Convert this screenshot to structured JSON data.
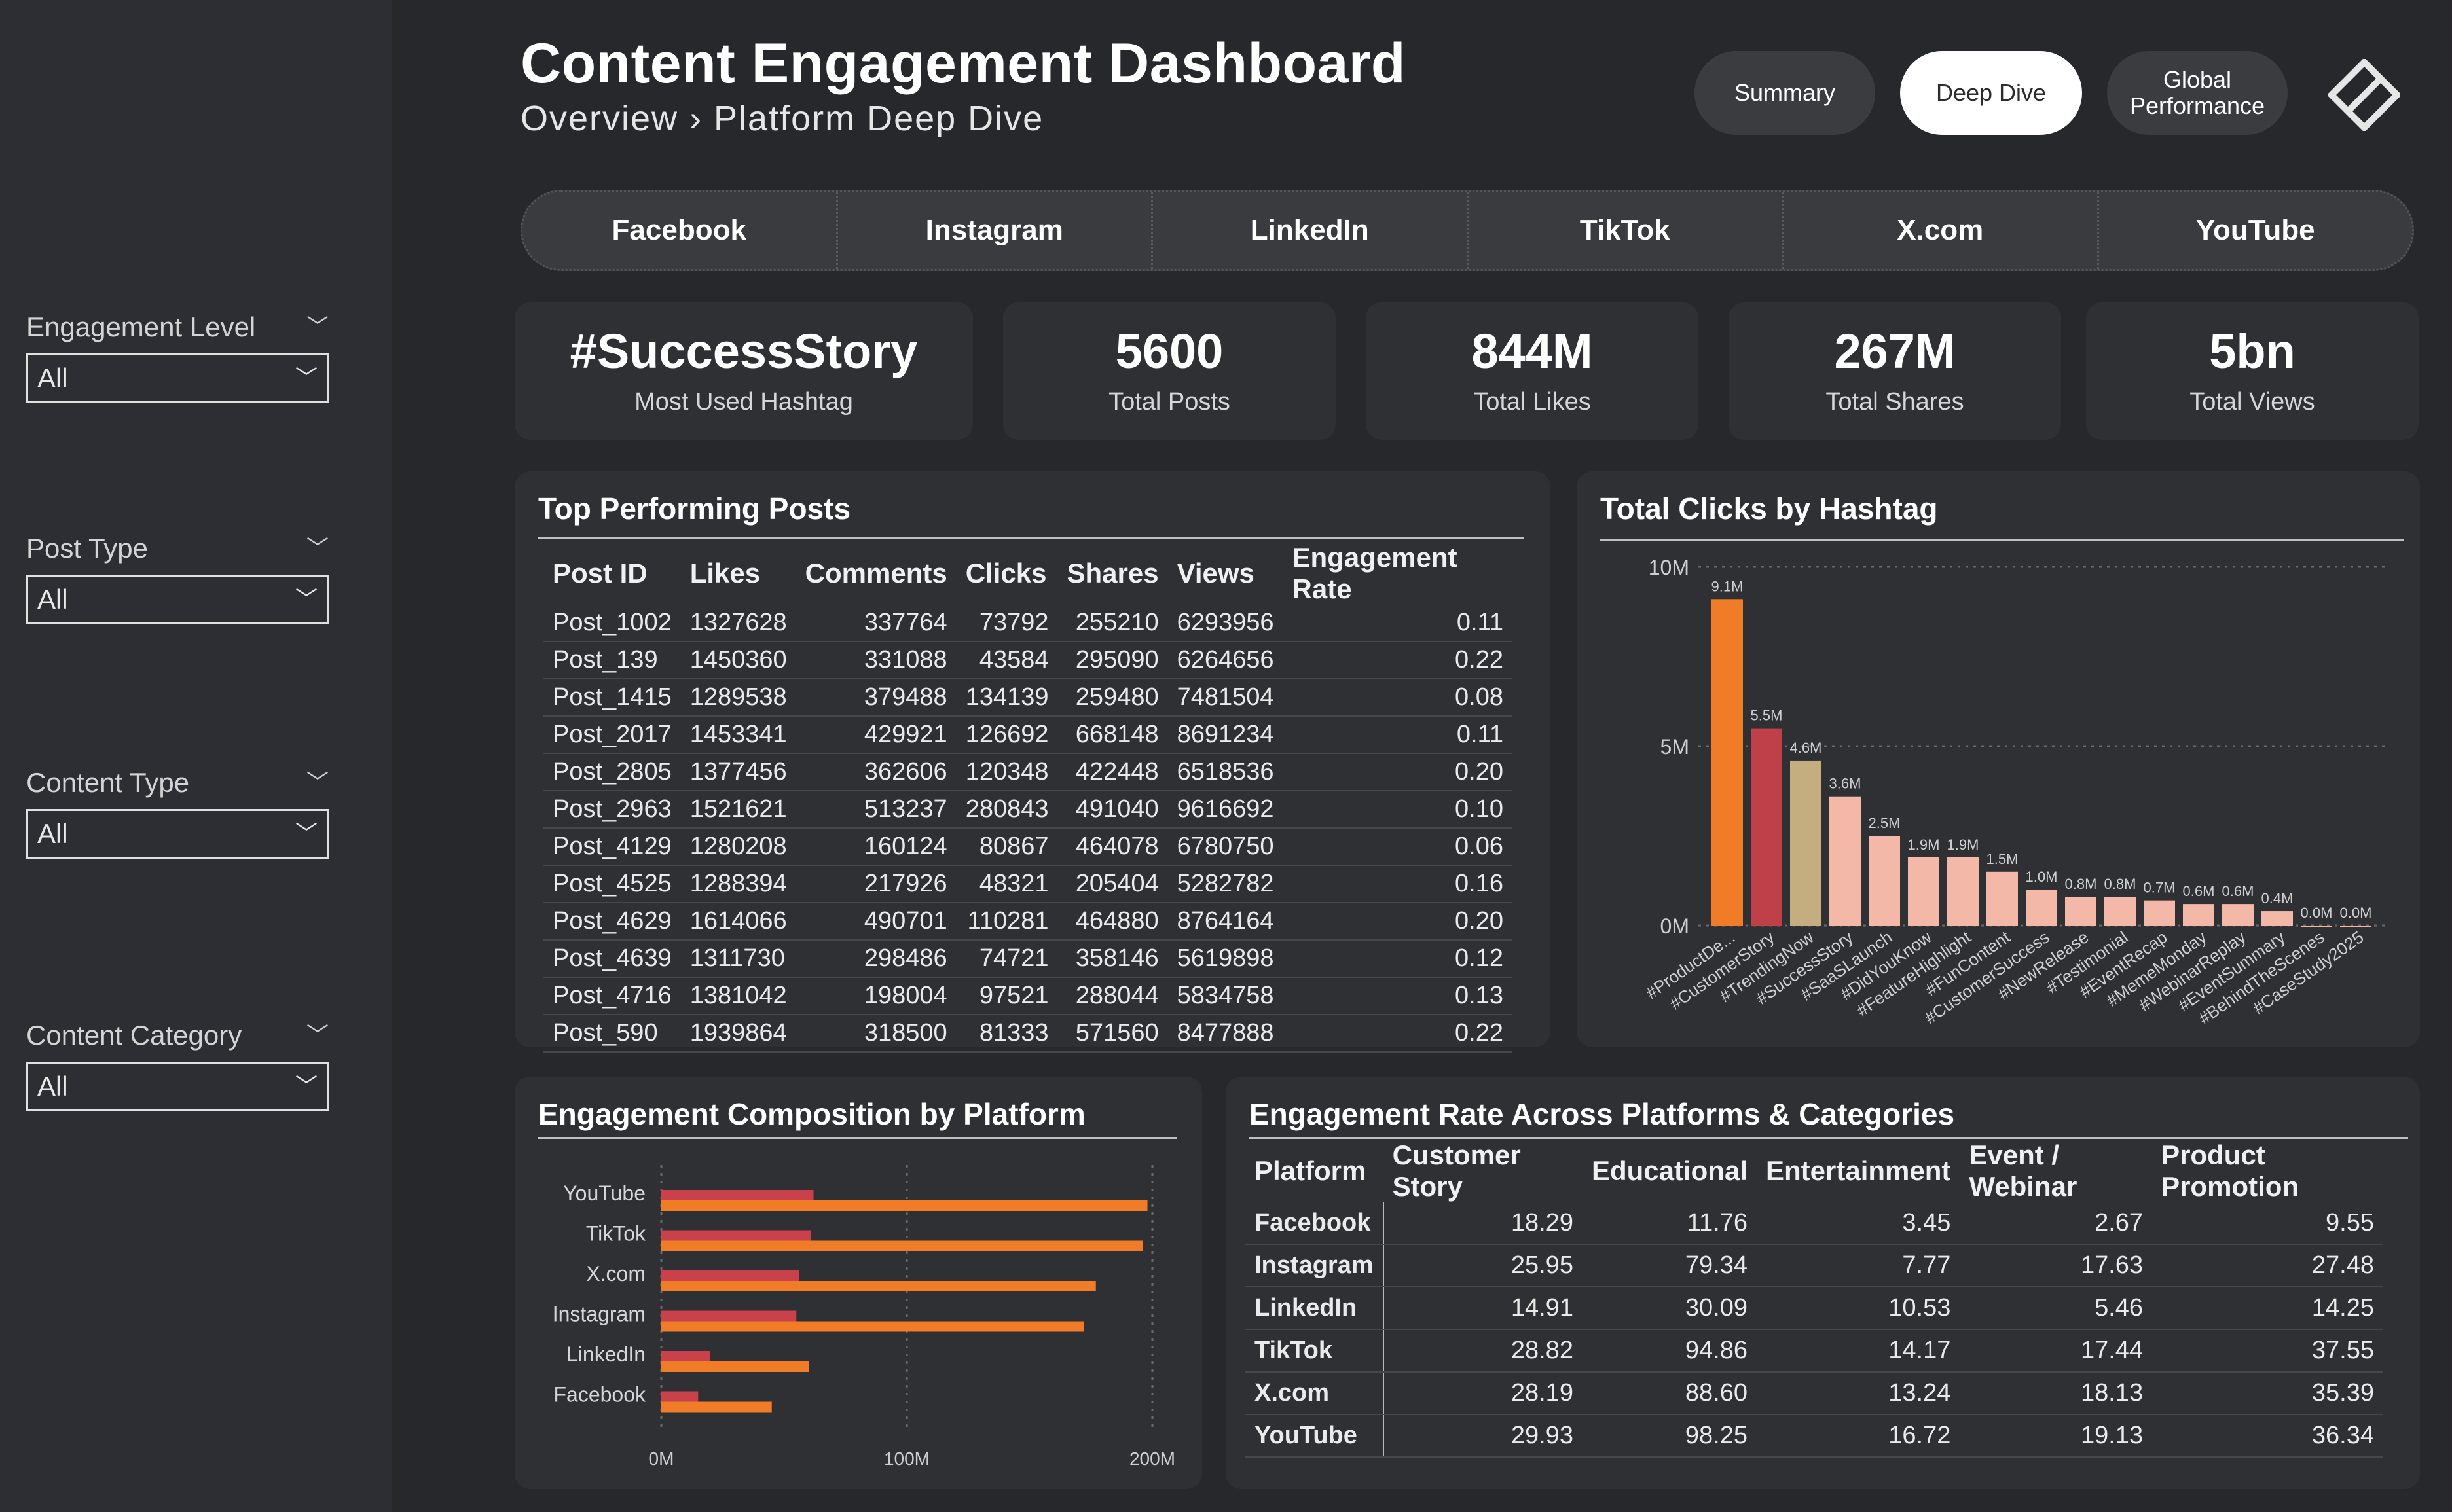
{
  "header": {
    "title": "Content Engagement Dashboard",
    "breadcrumb": "Overview › Platform Deep Dive"
  },
  "nav": {
    "buttons": [
      {
        "label": "Summary",
        "active": false
      },
      {
        "label": "Deep Dive",
        "active": true
      },
      {
        "label": "Global\nPerformance",
        "active": false
      }
    ],
    "logo_icon": "diamond-logo-icon"
  },
  "filters": [
    {
      "label": "Engagement Level",
      "value": "All"
    },
    {
      "label": "Post Type",
      "value": "All"
    },
    {
      "label": "Content Type",
      "value": "All"
    },
    {
      "label": "Content Category",
      "value": "All"
    }
  ],
  "platform_tabs": [
    "Facebook",
    "Instagram",
    "LinkedIn",
    "TikTok",
    "X.com",
    "YouTube"
  ],
  "kpis": [
    {
      "value": "#SuccessStory",
      "label": "Most Used Hashtag"
    },
    {
      "value": "5600",
      "label": "Total Posts"
    },
    {
      "value": "844M",
      "label": "Total Likes"
    },
    {
      "value": "267M",
      "label": "Total Shares"
    },
    {
      "value": "5bn",
      "label": "Total Views"
    }
  ],
  "top_posts": {
    "title": "Top Performing Posts",
    "columns": [
      "Post ID",
      "Likes",
      "Comments",
      "Clicks",
      "Shares",
      "Views",
      "Engagement Rate"
    ],
    "rows": [
      [
        "Post_1002",
        "1327628",
        "337764",
        "73792",
        "255210",
        "6293956",
        "0.11"
      ],
      [
        "Post_139",
        "1450360",
        "331088",
        "43584",
        "295090",
        "6264656",
        "0.22"
      ],
      [
        "Post_1415",
        "1289538",
        "379488",
        "134139",
        "259480",
        "7481504",
        "0.08"
      ],
      [
        "Post_2017",
        "1453341",
        "429921",
        "126692",
        "668148",
        "8691234",
        "0.11"
      ],
      [
        "Post_2805",
        "1377456",
        "362606",
        "120348",
        "422448",
        "6518536",
        "0.20"
      ],
      [
        "Post_2963",
        "1521621",
        "513237",
        "280843",
        "491040",
        "9616692",
        "0.10"
      ],
      [
        "Post_4129",
        "1280208",
        "160124",
        "80867",
        "464078",
        "6780750",
        "0.06"
      ],
      [
        "Post_4525",
        "1288394",
        "217926",
        "48321",
        "205404",
        "5282782",
        "0.16"
      ],
      [
        "Post_4629",
        "1614066",
        "490701",
        "110281",
        "464880",
        "8764164",
        "0.20"
      ],
      [
        "Post_4639",
        "1311730",
        "298486",
        "74721",
        "358146",
        "5619898",
        "0.12"
      ],
      [
        "Post_4716",
        "1381042",
        "198004",
        "97521",
        "288044",
        "5834758",
        "0.13"
      ],
      [
        "Post_590",
        "1939864",
        "318500",
        "81333",
        "571560",
        "8477888",
        "0.22"
      ]
    ]
  },
  "clicks_chart": {
    "title": "Total Clicks by Hashtag"
  },
  "composition_chart": {
    "title": "Engagement Composition by Platform"
  },
  "rate_table": {
    "title": "Engagement Rate Across Platforms & Categories",
    "columns": [
      "Platform",
      "Customer Story",
      "Educational",
      "Entertainment",
      "Event / Webinar",
      "Product Promotion"
    ],
    "rows": [
      [
        "Facebook",
        "18.29",
        "11.76",
        "3.45",
        "2.67",
        "9.55"
      ],
      [
        "Instagram",
        "25.95",
        "79.34",
        "7.77",
        "17.63",
        "27.48"
      ],
      [
        "LinkedIn",
        "14.91",
        "30.09",
        "10.53",
        "5.46",
        "14.25"
      ],
      [
        "TikTok",
        "28.82",
        "94.86",
        "14.17",
        "17.44",
        "37.55"
      ],
      [
        "X.com",
        "28.19",
        "88.60",
        "13.24",
        "18.13",
        "35.39"
      ],
      [
        "YouTube",
        "29.93",
        "98.25",
        "16.72",
        "19.13",
        "36.34"
      ]
    ]
  },
  "chart_data": [
    {
      "type": "bar",
      "title": "Total Clicks by Hashtag",
      "categories": [
        "#ProductDe...",
        "#CustomerStory",
        "#TrendingNow",
        "#SuccessStory",
        "#SaaSLaunch",
        "#DidYouKnow",
        "#FeatureHighlight",
        "#FunContent",
        "#CustomerSuccess",
        "#NewRelease",
        "#Testimonial",
        "#EventRecap",
        "#MemeMonday",
        "#WebinarReplay",
        "#EventSummary",
        "#BehindTheScenes",
        "#CaseStudy2025"
      ],
      "values": [
        9.1,
        5.5,
        4.6,
        3.6,
        2.5,
        1.9,
        1.9,
        1.5,
        1.0,
        0.8,
        0.8,
        0.7,
        0.6,
        0.6,
        0.4,
        0.0,
        0.0
      ],
      "data_labels": [
        "9.1M",
        "5.5M",
        "4.6M",
        "3.6M",
        "2.5M",
        "1.9M",
        "1.9M",
        "1.5M",
        "1.0M",
        "0.8M",
        "0.8M",
        "0.7M",
        "0.6M",
        "0.6M",
        "0.4M",
        "0.0M",
        "0.0M"
      ],
      "colors": [
        "#f07c28",
        "#c0404a",
        "#c4ad7e",
        "#f4b8a8",
        "#f4b8a8",
        "#f4b8a8",
        "#f4b8a8",
        "#f4b8a8",
        "#f4b8a8",
        "#f4b8a8",
        "#f4b8a8",
        "#f4b8a8",
        "#f4b8a8",
        "#f4b8a8",
        "#f4b8a8",
        "#f4b8a8",
        "#f4b8a8"
      ],
      "y_ticks": [
        "0M",
        "5M",
        "10M"
      ],
      "ylim": [
        0,
        10
      ],
      "units": "M",
      "grid": true
    },
    {
      "type": "bar",
      "orientation": "horizontal",
      "title": "Engagement Composition by Platform",
      "categories": [
        "YouTube",
        "TikTok",
        "X.com",
        "Instagram",
        "LinkedIn",
        "Facebook"
      ],
      "series": [
        {
          "color": "#c9424b",
          "values": [
            62,
            61,
            56,
            55,
            20,
            15
          ]
        },
        {
          "color": "#f07c28",
          "values": [
            198,
            196,
            177,
            172,
            60,
            45
          ]
        }
      ],
      "x_ticks": [
        "0M",
        "100M",
        "200M"
      ],
      "xlim": [
        0,
        200
      ],
      "units": "M",
      "grid": true
    }
  ]
}
